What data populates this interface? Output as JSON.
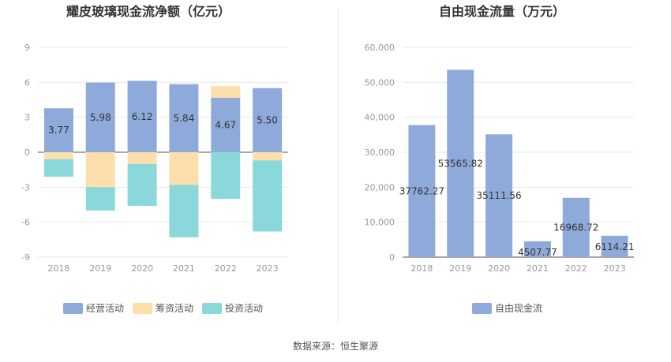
{
  "source_text": "数据来源：恒生聚源",
  "chart_data": [
    {
      "type": "bar",
      "stacked": true,
      "title": "耀皮玻璃现金流净额（亿元）",
      "categories": [
        "2018",
        "2019",
        "2020",
        "2021",
        "2022",
        "2023"
      ],
      "ylim": [
        -9,
        9
      ],
      "yticks": [
        "9",
        "6",
        "3",
        "0",
        "-3",
        "-6",
        "-9"
      ],
      "grid": true,
      "legend_position": "bottom",
      "series": [
        {
          "name": "经营活动",
          "color": "#8eaadb",
          "values": [
            3.77,
            5.98,
            6.12,
            5.84,
            4.67,
            5.5
          ],
          "labels": [
            "3.77",
            "5.98",
            "6.12",
            "5.84",
            "4.67",
            "5.50"
          ]
        },
        {
          "name": "筹资活动",
          "color": "#fddfae",
          "values": [
            -0.6,
            -3.0,
            -1.0,
            -2.8,
            1.0,
            -0.7
          ]
        },
        {
          "name": "投资活动",
          "color": "#8ad8da",
          "values": [
            -1.5,
            -2.0,
            -3.6,
            -4.5,
            -4.0,
            -6.1
          ]
        }
      ]
    },
    {
      "type": "bar",
      "title": "自由现金流量（万元）",
      "categories": [
        "2018",
        "2019",
        "2020",
        "2021",
        "2022",
        "2023"
      ],
      "ylim": [
        0,
        60000
      ],
      "yticks": [
        "60,000",
        "50,000",
        "40,000",
        "30,000",
        "20,000",
        "10,000",
        "0"
      ],
      "grid": true,
      "legend_position": "bottom",
      "series": [
        {
          "name": "自由现金流",
          "color": "#8eaadb",
          "values": [
            37762.27,
            53565.82,
            35111.56,
            4507.77,
            16968.72,
            6114.21
          ],
          "labels": [
            "37762.27",
            "53565.82",
            "35111.56",
            "4507.77",
            "16968.72",
            "6114.21"
          ]
        }
      ]
    }
  ]
}
